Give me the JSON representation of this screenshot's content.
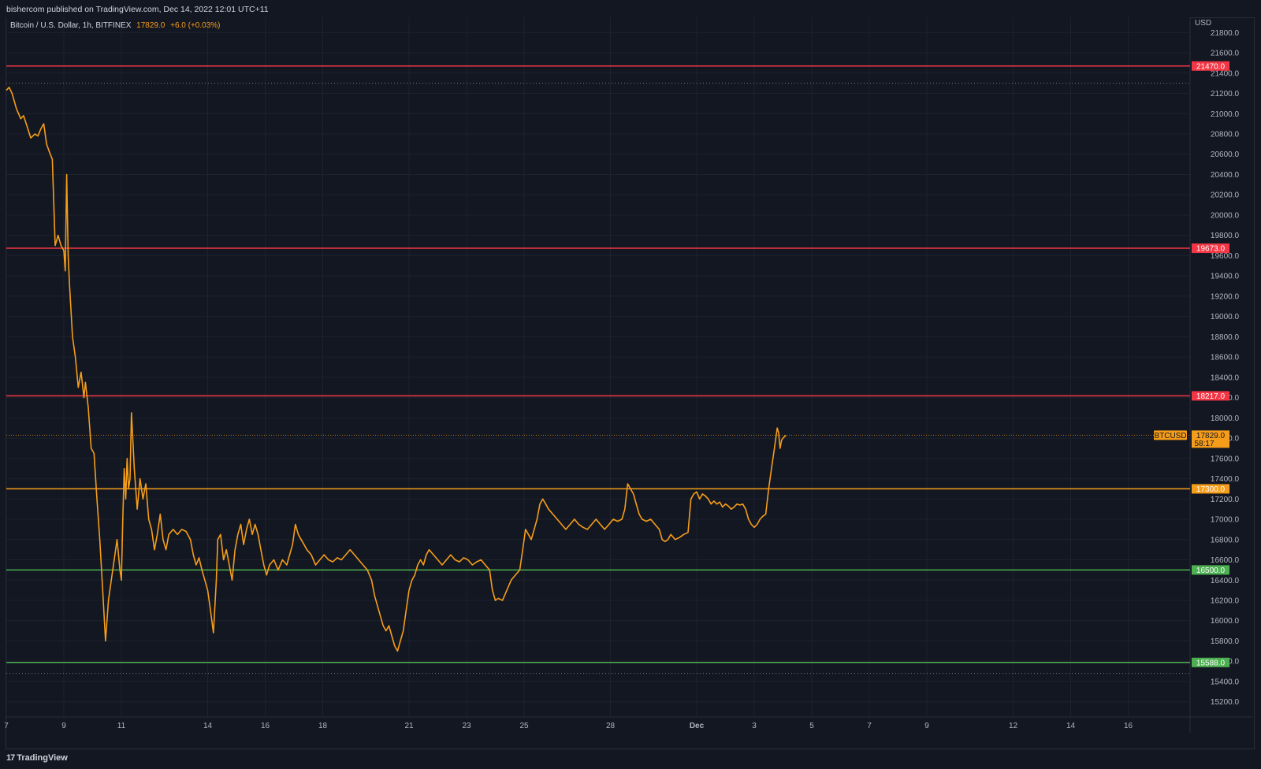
{
  "header": {
    "published_by": "bishercom published on TradingView.com, Dec 14, 2022 12:01 UTC+11"
  },
  "legend": {
    "symbol": "Bitcoin / U.S. Dollar, 1h, BITFINEX",
    "last": "17829.0",
    "change": "+6.0 (+0.03%)"
  },
  "footer": {
    "logo_text": "TradingView"
  },
  "colors": {
    "background": "#131722",
    "price_line": "#f59d1a",
    "resistance": "#f23645",
    "support_orange": "#f59d1a",
    "support_green": "#4caf50",
    "grid": "#1e222d",
    "axis_text": "#b2b5be"
  },
  "chart_data": {
    "type": "line",
    "title": "Bitcoin / U.S. Dollar, 1h, BITFINEX",
    "currency": "USD",
    "ylim": [
      15050,
      21950
    ],
    "yticks": [
      15200,
      15400,
      15600,
      15800,
      16000,
      16200,
      16400,
      16600,
      16800,
      17000,
      17200,
      17400,
      17600,
      17800,
      18000,
      18200,
      18400,
      18600,
      18800,
      19000,
      19200,
      19400,
      19600,
      19800,
      20000,
      20200,
      20400,
      20600,
      20800,
      21000,
      21200,
      21400,
      21600,
      21800
    ],
    "x_day_range": [
      7,
      48
    ],
    "xticks": [
      {
        "day": 7,
        "label": "7"
      },
      {
        "day": 9,
        "label": "9"
      },
      {
        "day": 11,
        "label": "11"
      },
      {
        "day": 14,
        "label": "14"
      },
      {
        "day": 16,
        "label": "16"
      },
      {
        "day": 18,
        "label": "18"
      },
      {
        "day": 21,
        "label": "21"
      },
      {
        "day": 23,
        "label": "23"
      },
      {
        "day": 25,
        "label": "25"
      },
      {
        "day": 28,
        "label": "28"
      },
      {
        "day": 31,
        "label": "Dec",
        "bold": true
      },
      {
        "day": 33,
        "label": "3"
      },
      {
        "day": 35,
        "label": "5"
      },
      {
        "day": 37,
        "label": "7"
      },
      {
        "day": 39,
        "label": "9"
      },
      {
        "day": 42,
        "label": "12"
      },
      {
        "day": 44,
        "label": "14"
      },
      {
        "day": 46,
        "label": "16"
      }
    ],
    "series": [
      {
        "name": "BTCUSD",
        "points": [
          [
            7.0,
            21230
          ],
          [
            7.1,
            21260
          ],
          [
            7.2,
            21200
          ],
          [
            7.35,
            21050
          ],
          [
            7.5,
            20950
          ],
          [
            7.6,
            20980
          ],
          [
            7.75,
            20850
          ],
          [
            7.85,
            20760
          ],
          [
            8.0,
            20800
          ],
          [
            8.1,
            20780
          ],
          [
            8.2,
            20850
          ],
          [
            8.3,
            20900
          ],
          [
            8.4,
            20700
          ],
          [
            8.5,
            20620
          ],
          [
            8.6,
            20550
          ],
          [
            8.7,
            19700
          ],
          [
            8.8,
            19800
          ],
          [
            8.9,
            19700
          ],
          [
            9.0,
            19650
          ],
          [
            9.05,
            19450
          ],
          [
            9.1,
            20400
          ],
          [
            9.15,
            19600
          ],
          [
            9.2,
            19300
          ],
          [
            9.3,
            18800
          ],
          [
            9.4,
            18600
          ],
          [
            9.5,
            18300
          ],
          [
            9.6,
            18450
          ],
          [
            9.7,
            18200
          ],
          [
            9.75,
            18350
          ],
          [
            9.85,
            18100
          ],
          [
            9.95,
            17700
          ],
          [
            10.05,
            17650
          ],
          [
            10.15,
            17200
          ],
          [
            10.25,
            16800
          ],
          [
            10.35,
            16300
          ],
          [
            10.45,
            15800
          ],
          [
            10.55,
            16200
          ],
          [
            10.65,
            16400
          ],
          [
            10.75,
            16600
          ],
          [
            10.85,
            16800
          ],
          [
            10.95,
            16500
          ],
          [
            11.0,
            16400
          ],
          [
            11.05,
            17000
          ],
          [
            11.1,
            17500
          ],
          [
            11.15,
            17200
          ],
          [
            11.2,
            17600
          ],
          [
            11.25,
            17300
          ],
          [
            11.3,
            17400
          ],
          [
            11.35,
            18050
          ],
          [
            11.45,
            17500
          ],
          [
            11.55,
            17100
          ],
          [
            11.65,
            17400
          ],
          [
            11.75,
            17200
          ],
          [
            11.85,
            17350
          ],
          [
            11.95,
            17000
          ],
          [
            12.05,
            16900
          ],
          [
            12.15,
            16700
          ],
          [
            12.25,
            16850
          ],
          [
            12.35,
            17050
          ],
          [
            12.45,
            16800
          ],
          [
            12.55,
            16700
          ],
          [
            12.65,
            16850
          ],
          [
            12.8,
            16900
          ],
          [
            12.95,
            16850
          ],
          [
            13.1,
            16900
          ],
          [
            13.25,
            16880
          ],
          [
            13.4,
            16800
          ],
          [
            13.5,
            16650
          ],
          [
            13.6,
            16550
          ],
          [
            13.7,
            16620
          ],
          [
            13.8,
            16500
          ],
          [
            13.9,
            16400
          ],
          [
            14.0,
            16300
          ],
          [
            14.1,
            16100
          ],
          [
            14.2,
            15880
          ],
          [
            14.3,
            16400
          ],
          [
            14.35,
            16800
          ],
          [
            14.45,
            16850
          ],
          [
            14.55,
            16600
          ],
          [
            14.65,
            16700
          ],
          [
            14.75,
            16550
          ],
          [
            14.85,
            16400
          ],
          [
            14.95,
            16700
          ],
          [
            15.05,
            16850
          ],
          [
            15.15,
            16950
          ],
          [
            15.25,
            16750
          ],
          [
            15.35,
            16900
          ],
          [
            15.45,
            17000
          ],
          [
            15.55,
            16850
          ],
          [
            15.65,
            16950
          ],
          [
            15.75,
            16850
          ],
          [
            15.85,
            16700
          ],
          [
            15.95,
            16550
          ],
          [
            16.05,
            16450
          ],
          [
            16.15,
            16550
          ],
          [
            16.3,
            16600
          ],
          [
            16.45,
            16500
          ],
          [
            16.6,
            16600
          ],
          [
            16.75,
            16550
          ],
          [
            16.85,
            16650
          ],
          [
            16.95,
            16750
          ],
          [
            17.05,
            16950
          ],
          [
            17.15,
            16850
          ],
          [
            17.25,
            16800
          ],
          [
            17.35,
            16750
          ],
          [
            17.45,
            16700
          ],
          [
            17.6,
            16650
          ],
          [
            17.75,
            16550
          ],
          [
            17.9,
            16600
          ],
          [
            18.05,
            16650
          ],
          [
            18.2,
            16600
          ],
          [
            18.35,
            16580
          ],
          [
            18.5,
            16620
          ],
          [
            18.65,
            16600
          ],
          [
            18.8,
            16650
          ],
          [
            18.95,
            16700
          ],
          [
            19.1,
            16650
          ],
          [
            19.25,
            16600
          ],
          [
            19.4,
            16550
          ],
          [
            19.55,
            16500
          ],
          [
            19.7,
            16400
          ],
          [
            19.8,
            16250
          ],
          [
            19.9,
            16150
          ],
          [
            20.0,
            16050
          ],
          [
            20.1,
            15950
          ],
          [
            20.2,
            15900
          ],
          [
            20.3,
            15950
          ],
          [
            20.4,
            15850
          ],
          [
            20.5,
            15750
          ],
          [
            20.6,
            15700
          ],
          [
            20.7,
            15800
          ],
          [
            20.8,
            15900
          ],
          [
            20.9,
            16100
          ],
          [
            21.0,
            16300
          ],
          [
            21.1,
            16400
          ],
          [
            21.2,
            16450
          ],
          [
            21.3,
            16550
          ],
          [
            21.4,
            16600
          ],
          [
            21.5,
            16550
          ],
          [
            21.6,
            16650
          ],
          [
            21.7,
            16700
          ],
          [
            21.85,
            16650
          ],
          [
            22.0,
            16600
          ],
          [
            22.15,
            16550
          ],
          [
            22.3,
            16600
          ],
          [
            22.45,
            16650
          ],
          [
            22.6,
            16600
          ],
          [
            22.75,
            16580
          ],
          [
            22.9,
            16620
          ],
          [
            23.05,
            16600
          ],
          [
            23.2,
            16550
          ],
          [
            23.35,
            16580
          ],
          [
            23.5,
            16600
          ],
          [
            23.65,
            16550
          ],
          [
            23.8,
            16500
          ],
          [
            23.9,
            16300
          ],
          [
            24.0,
            16200
          ],
          [
            24.1,
            16220
          ],
          [
            24.25,
            16200
          ],
          [
            24.4,
            16300
          ],
          [
            24.55,
            16400
          ],
          [
            24.7,
            16450
          ],
          [
            24.85,
            16500
          ],
          [
            24.95,
            16700
          ],
          [
            25.05,
            16900
          ],
          [
            25.15,
            16850
          ],
          [
            25.25,
            16800
          ],
          [
            25.35,
            16900
          ],
          [
            25.45,
            17000
          ],
          [
            25.55,
            17150
          ],
          [
            25.65,
            17200
          ],
          [
            25.75,
            17150
          ],
          [
            25.85,
            17100
          ],
          [
            26.0,
            17050
          ],
          [
            26.15,
            17000
          ],
          [
            26.3,
            16950
          ],
          [
            26.45,
            16900
          ],
          [
            26.6,
            16950
          ],
          [
            26.75,
            17000
          ],
          [
            26.9,
            16950
          ],
          [
            27.05,
            16920
          ],
          [
            27.2,
            16900
          ],
          [
            27.35,
            16950
          ],
          [
            27.5,
            17000
          ],
          [
            27.65,
            16950
          ],
          [
            27.8,
            16900
          ],
          [
            27.95,
            16950
          ],
          [
            28.1,
            17000
          ],
          [
            28.25,
            16980
          ],
          [
            28.4,
            17000
          ],
          [
            28.5,
            17100
          ],
          [
            28.6,
            17350
          ],
          [
            28.7,
            17300
          ],
          [
            28.8,
            17250
          ],
          [
            28.9,
            17150
          ],
          [
            29.0,
            17050
          ],
          [
            29.1,
            17000
          ],
          [
            29.25,
            16980
          ],
          [
            29.4,
            17000
          ],
          [
            29.55,
            16950
          ],
          [
            29.7,
            16900
          ],
          [
            29.8,
            16800
          ],
          [
            29.9,
            16780
          ],
          [
            30.0,
            16800
          ],
          [
            30.1,
            16850
          ],
          [
            30.25,
            16800
          ],
          [
            30.4,
            16820
          ],
          [
            30.55,
            16850
          ],
          [
            30.7,
            16870
          ],
          [
            30.8,
            17200
          ],
          [
            30.9,
            17250
          ],
          [
            31.0,
            17270
          ],
          [
            31.1,
            17200
          ],
          [
            31.2,
            17250
          ],
          [
            31.3,
            17230
          ],
          [
            31.4,
            17200
          ],
          [
            31.5,
            17150
          ],
          [
            31.6,
            17180
          ],
          [
            31.7,
            17150
          ],
          [
            31.8,
            17170
          ],
          [
            31.9,
            17120
          ],
          [
            32.0,
            17150
          ],
          [
            32.1,
            17130
          ],
          [
            32.2,
            17100
          ],
          [
            32.3,
            17120
          ],
          [
            32.4,
            17150
          ],
          [
            32.5,
            17140
          ],
          [
            32.6,
            17150
          ],
          [
            32.7,
            17100
          ],
          [
            32.8,
            17000
          ],
          [
            32.9,
            16950
          ],
          [
            33.0,
            16920
          ],
          [
            33.1,
            16950
          ],
          [
            33.2,
            17000
          ],
          [
            33.3,
            17030
          ],
          [
            33.4,
            17050
          ],
          [
            33.5,
            17300
          ],
          [
            33.6,
            17500
          ],
          [
            33.7,
            17700
          ],
          [
            33.8,
            17900
          ],
          [
            33.85,
            17850
          ],
          [
            33.9,
            17700
          ],
          [
            33.95,
            17780
          ],
          [
            34.0,
            17800
          ],
          [
            34.1,
            17829
          ]
        ]
      }
    ],
    "horizontal_levels": [
      {
        "value": 21470.0,
        "label": "21470.0",
        "color": "#f23645"
      },
      {
        "value": 19673.0,
        "label": "19673.0",
        "color": "#f23645"
      },
      {
        "value": 18217.0,
        "label": "18217.0",
        "color": "#f23645"
      },
      {
        "value": 17300.0,
        "label": "17300.0",
        "color": "#f59d1a"
      },
      {
        "value": 16500.0,
        "label": "16500.0",
        "color": "#4caf50"
      },
      {
        "value": 15588.0,
        "label": "15588.0",
        "color": "#4caf50"
      }
    ],
    "last_price": {
      "symbol": "BTCUSD",
      "value": 17829.0,
      "label": "17829.0",
      "countdown": "58:17"
    }
  }
}
